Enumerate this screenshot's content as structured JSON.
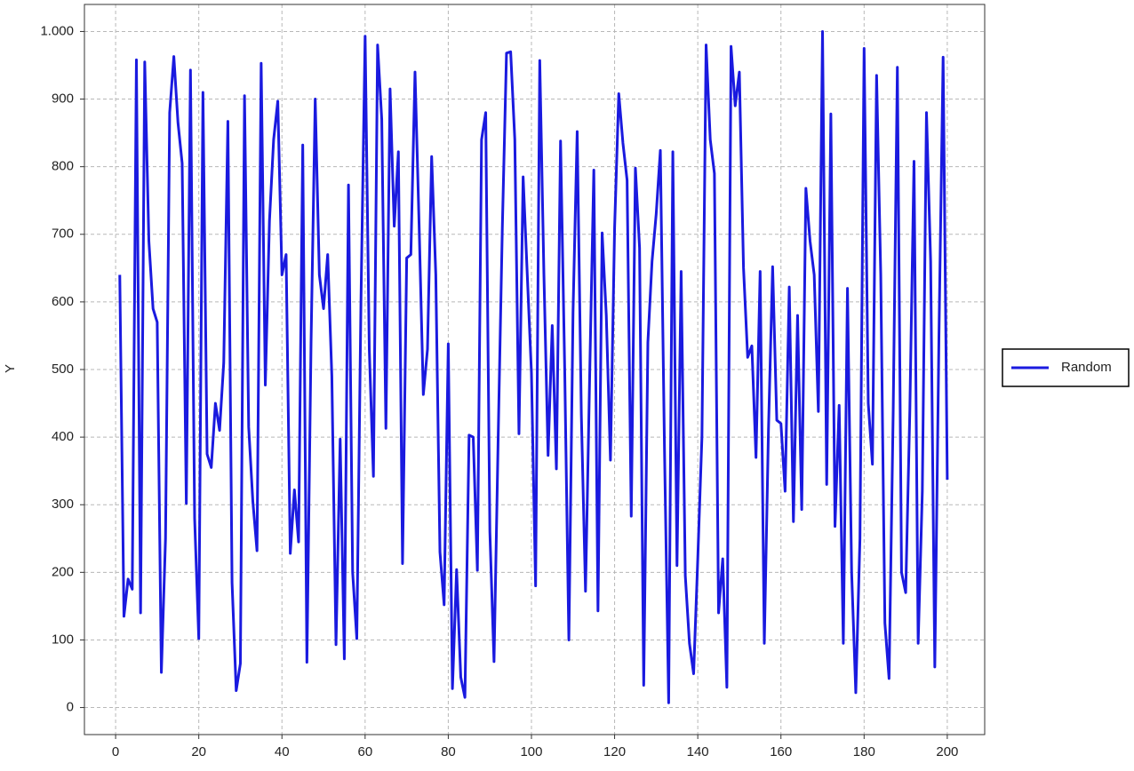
{
  "chart_data": {
    "type": "line",
    "y_label": "Y",
    "x": [
      1,
      2,
      3,
      4,
      5,
      6,
      7,
      8,
      9,
      10,
      11,
      12,
      13,
      14,
      15,
      16,
      17,
      18,
      19,
      20,
      21,
      22,
      23,
      24,
      25,
      26,
      27,
      28,
      29,
      30,
      31,
      32,
      33,
      34,
      35,
      36,
      37,
      38,
      39,
      40,
      41,
      42,
      43,
      44,
      45,
      46,
      47,
      48,
      49,
      50,
      51,
      52,
      53,
      54,
      55,
      56,
      57,
      58,
      59,
      60,
      61,
      62,
      63,
      64,
      65,
      66,
      67,
      68,
      69,
      70,
      71,
      72,
      73,
      74,
      75,
      76,
      77,
      78,
      79,
      80,
      81,
      82,
      83,
      84,
      85,
      86,
      87,
      88,
      89,
      90,
      91,
      92,
      93,
      94,
      95,
      96,
      97,
      98,
      99,
      100,
      101,
      102,
      103,
      104,
      105,
      106,
      107,
      108,
      109,
      110,
      111,
      112,
      113,
      114,
      115,
      116,
      117,
      118,
      119,
      120,
      121,
      122,
      123,
      124,
      125,
      126,
      127,
      128,
      129,
      130,
      131,
      132,
      133,
      134,
      135,
      136,
      137,
      138,
      139,
      140,
      141,
      142,
      143,
      144,
      145,
      146,
      147,
      148,
      149,
      150,
      151,
      152,
      153,
      154,
      155,
      156,
      157,
      158,
      159,
      160,
      161,
      162,
      163,
      164,
      165,
      166,
      167,
      168,
      169,
      170,
      171,
      172,
      173,
      174,
      175,
      176,
      177,
      178,
      179,
      180,
      181,
      182,
      183,
      184,
      185,
      186,
      187,
      188,
      189,
      190,
      191,
      192,
      193,
      194,
      195,
      196,
      197,
      198,
      199,
      200
    ],
    "series": [
      {
        "name": "Random",
        "color": "#1a1adf",
        "values": [
          640,
          135,
          190,
          175,
          958,
          140,
          955,
          690,
          590,
          570,
          52,
          250,
          880,
          963,
          865,
          805,
          302,
          943,
          280,
          102,
          910,
          375,
          355,
          450,
          410,
          510,
          867,
          185,
          25,
          65,
          905,
          415,
          305,
          232,
          953,
          477,
          720,
          840,
          897,
          640,
          670,
          228,
          322,
          245,
          832,
          67,
          540,
          900,
          640,
          590,
          670,
          490,
          93,
          397,
          72,
          773,
          200,
          102,
          600,
          993,
          530,
          342,
          980,
          870,
          413,
          915,
          712,
          822,
          213,
          665,
          670,
          940,
          710,
          463,
          530,
          815,
          640,
          230,
          152,
          538,
          28,
          204,
          45,
          15,
          403,
          400,
          203,
          840,
          880,
          260,
          68,
          400,
          710,
          968,
          970,
          840,
          405,
          785,
          640,
          495,
          180,
          957,
          640,
          373,
          565,
          353,
          838,
          500,
          100,
          585,
          852,
          433,
          172,
          490,
          795,
          143,
          702,
          580,
          366,
          710,
          908,
          835,
          780,
          283,
          798,
          680,
          33,
          540,
          660,
          730,
          824,
          380,
          7,
          822,
          210,
          645,
          195,
          95,
          50,
          220,
          400,
          980,
          840,
          790,
          140,
          220,
          30,
          978,
          890,
          940,
          650,
          518,
          535,
          370,
          645,
          95,
          410,
          652,
          425,
          420,
          320,
          622,
          275,
          580,
          293,
          768,
          690,
          640,
          438,
          1000,
          330,
          878,
          268,
          447,
          95,
          620,
          200,
          22,
          250,
          975,
          450,
          360,
          935,
          640,
          125,
          43,
          440,
          947,
          200,
          170,
          440,
          808,
          95,
          320,
          880,
          660,
          60,
          550,
          962,
          337
        ]
      }
    ],
    "xlim": [
      -7.5,
      209
    ],
    "ylim": [
      -40,
      1040
    ],
    "xticks": [
      0,
      20,
      40,
      60,
      80,
      100,
      120,
      140,
      160,
      180,
      200
    ],
    "yticks": [
      0,
      100,
      200,
      300,
      400,
      500,
      600,
      700,
      800,
      900,
      {
        "value": 1000,
        "label": "1.000"
      }
    ],
    "grid": true,
    "legend": "right"
  }
}
